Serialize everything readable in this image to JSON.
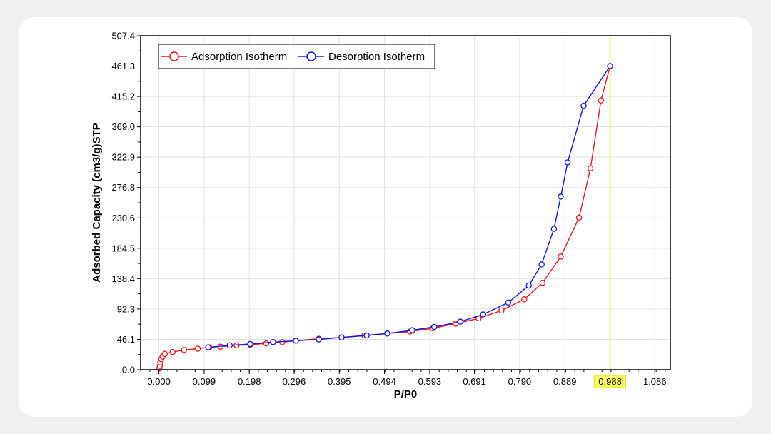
{
  "chart_data": {
    "type": "line",
    "title": "",
    "xlabel": "P/P0",
    "ylabel": "Adsorbed Capacity (cm3/g)STP",
    "xlim": [
      -0.04,
      1.12
    ],
    "ylim": [
      0,
      507.4
    ],
    "x_ticks": [
      "0.000",
      "0.099",
      "0.198",
      "0.296",
      "0.395",
      "0.494",
      "0.593",
      "0.691",
      "0.790",
      "0.889",
      "0.988",
      "1.086"
    ],
    "y_ticks": [
      "0.0",
      "46.1",
      "92.3",
      "138.4",
      "184.5",
      "230.6",
      "276.8",
      "322.9",
      "369.0",
      "415.2",
      "461.3",
      "507.4"
    ],
    "highlighted_x_tick": "0.988",
    "reference_line_x": 0.988,
    "grid": true,
    "legend_position": "top-left",
    "series": [
      {
        "name": "Adsorption Isotherm",
        "color": "#e8141b",
        "x": [
          0.001,
          0.002,
          0.003,
          0.005,
          0.008,
          0.013,
          0.03,
          0.055,
          0.085,
          0.11,
          0.135,
          0.17,
          0.2,
          0.235,
          0.27,
          0.3,
          0.35,
          0.4,
          0.45,
          0.5,
          0.55,
          0.6,
          0.65,
          0.7,
          0.75,
          0.8,
          0.84,
          0.88,
          0.92,
          0.945,
          0.968,
          0.988
        ],
        "y": [
          2,
          6,
          11,
          16,
          20,
          24,
          27,
          30,
          32,
          34,
          35,
          37,
          38,
          40,
          42,
          44,
          47,
          49,
          52,
          55,
          58,
          63,
          70,
          78,
          90,
          107,
          132,
          172,
          231,
          306,
          409,
          461.3
        ]
      },
      {
        "name": "Desorption Isotherm",
        "color": "#1414e6",
        "x": [
          0.988,
          0.93,
          0.895,
          0.88,
          0.865,
          0.838,
          0.81,
          0.765,
          0.71,
          0.66,
          0.603,
          0.555,
          0.5,
          0.455,
          0.4,
          0.35,
          0.3,
          0.25,
          0.2,
          0.155,
          0.108
        ],
        "y": [
          461.3,
          401,
          315,
          263,
          214,
          160,
          128,
          102,
          84,
          73,
          65,
          60,
          55,
          52,
          49,
          46,
          44,
          42,
          39,
          37,
          34
        ]
      }
    ]
  }
}
